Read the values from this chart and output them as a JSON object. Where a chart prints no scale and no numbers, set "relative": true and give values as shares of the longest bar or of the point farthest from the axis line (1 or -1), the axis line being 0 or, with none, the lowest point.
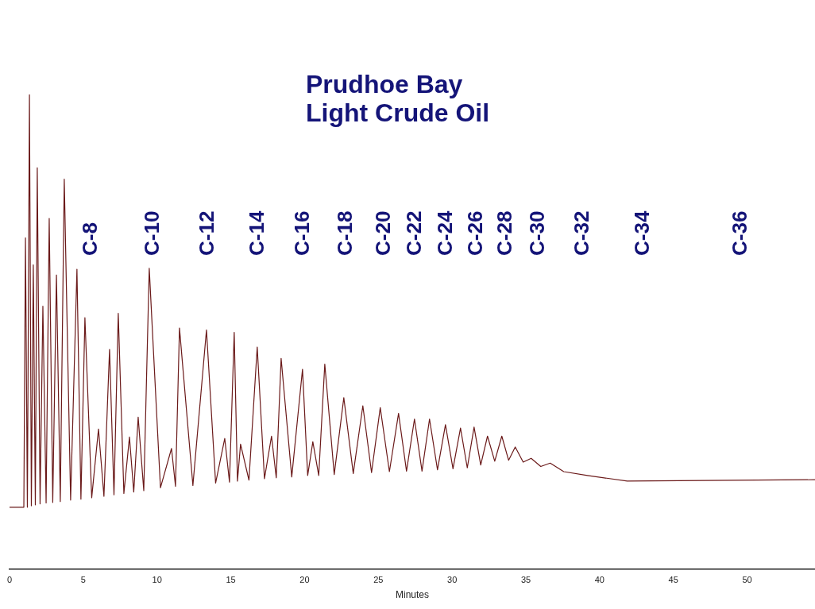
{
  "chart_data": {
    "type": "line",
    "title": "Prudhoe Bay\nLight Crude Oil",
    "xlabel": "Minutes",
    "relative": true,
    "marker": "none",
    "color": "#6b1a1a",
    "xlim": [
      0,
      54.6
    ],
    "xticks": [
      0,
      5,
      10,
      15,
      20,
      25,
      30,
      35,
      40,
      45,
      50
    ],
    "x": [
      0,
      0.86,
      0.97,
      1.08,
      1.21,
      1.35,
      1.48,
      1.61,
      1.75,
      1.88,
      2.07,
      2.26,
      2.48,
      2.69,
      2.93,
      3.18,
      3.44,
      3.71,
      4.14,
      4.57,
      4.84,
      5.11,
      5.57,
      6.03,
      6.4,
      6.78,
      7.08,
      7.37,
      7.75,
      8.13,
      8.42,
      8.72,
      9.1,
      9.47,
      10.23,
      10.98,
      11.25,
      11.52,
      12.43,
      13.35,
      13.97,
      14.59,
      14.91,
      15.23,
      15.45,
      15.66,
      16.23,
      16.79,
      17.28,
      17.76,
      18.08,
      18.41,
      19.13,
      19.86,
      20.21,
      20.56,
      20.96,
      21.37,
      22.01,
      22.66,
      23.3,
      23.95,
      24.54,
      25.13,
      25.75,
      26.37,
      26.91,
      27.45,
      27.96,
      28.47,
      29.01,
      29.55,
      30.06,
      30.57,
      31.03,
      31.49,
      31.94,
      32.4,
      32.89,
      33.37,
      33.83,
      34.28,
      34.82,
      35.36,
      36.01,
      36.65,
      37.57,
      39.18,
      41.87,
      54.6
    ],
    "values": [
      0.13,
      0.13,
      0.13,
      0.698,
      0.13,
      1,
      0.133,
      0.641,
      0.135,
      0.846,
      0.137,
      0.554,
      0.139,
      0.739,
      0.14,
      0.62,
      0.142,
      0.822,
      0.145,
      0.632,
      0.147,
      0.53,
      0.15,
      0.295,
      0.153,
      0.463,
      0.156,
      0.539,
      0.159,
      0.278,
      0.162,
      0.32,
      0.165,
      0.634,
      0.171,
      0.254,
      0.174,
      0.508,
      0.176,
      0.504,
      0.181,
      0.275,
      0.183,
      0.499,
      0.185,
      0.263,
      0.187,
      0.468,
      0.19,
      0.28,
      0.192,
      0.444,
      0.194,
      0.421,
      0.197,
      0.268,
      0.197,
      0.432,
      0.199,
      0.361,
      0.201,
      0.344,
      0.203,
      0.34,
      0.205,
      0.328,
      0.206,
      0.316,
      0.206,
      0.316,
      0.209,
      0.304,
      0.211,
      0.297,
      0.213,
      0.299,
      0.219,
      0.28,
      0.227,
      0.28,
      0.229,
      0.257,
      0.225,
      0.233,
      0.216,
      0.223,
      0.205,
      0.197,
      0.185,
      0.188
    ],
    "annotations": [
      "C-8",
      "C-10",
      "C-12",
      "C-14",
      "C-16",
      "C-18",
      "C-20",
      "C-22",
      "C-24",
      "C-26",
      "C-28",
      "C-30",
      "C-32",
      "C-34",
      "C-36"
    ]
  }
}
